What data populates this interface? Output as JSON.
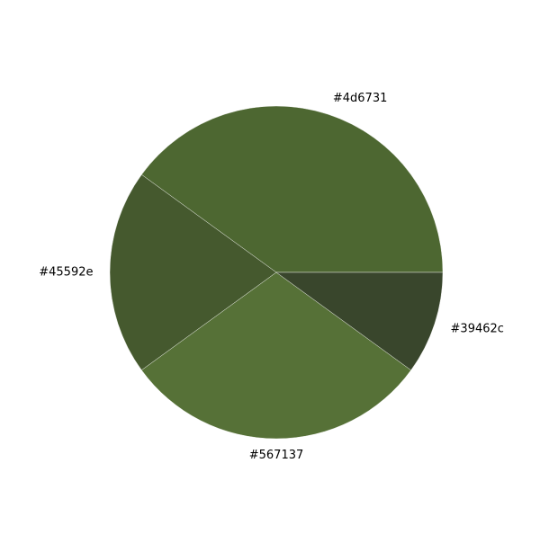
{
  "chart_data": {
    "type": "pie",
    "title": "",
    "start_angle": 0,
    "direction": "counterclockwise",
    "slices": [
      {
        "label": "#4d6731",
        "value": 40,
        "color": "#4d6731"
      },
      {
        "label": "#45592e",
        "value": 20,
        "color": "#45592e"
      },
      {
        "label": "#567137",
        "value": 30,
        "color": "#567137"
      },
      {
        "label": "#39462c",
        "value": 10,
        "color": "#39462c"
      }
    ]
  }
}
